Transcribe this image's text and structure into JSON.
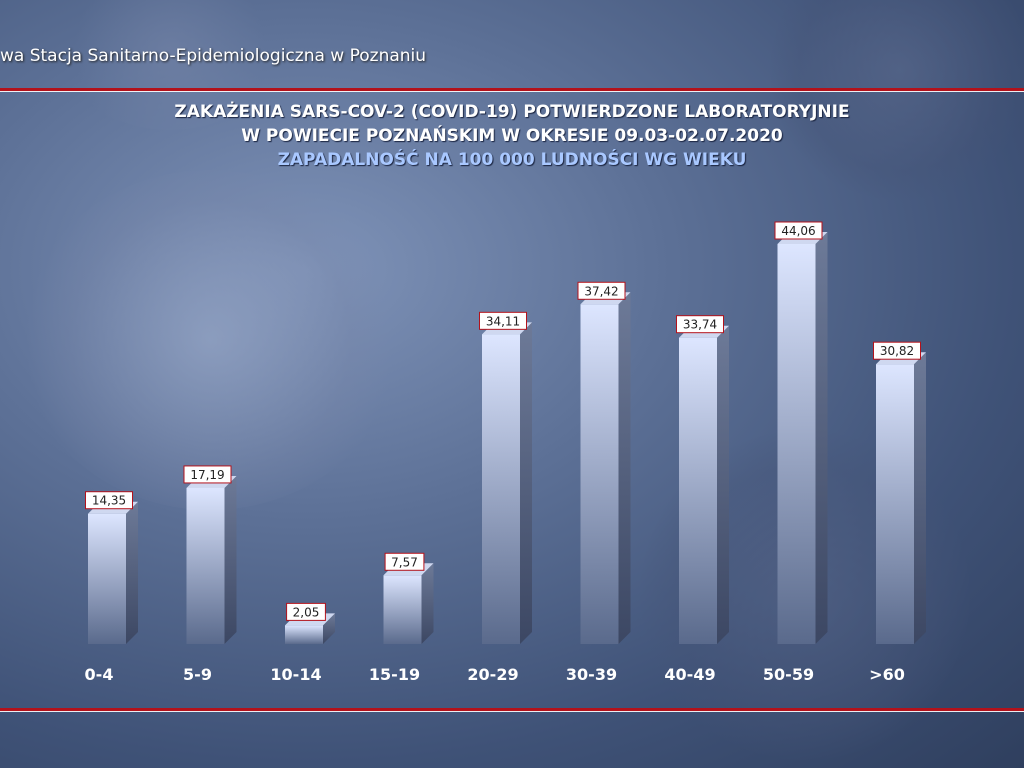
{
  "header": {
    "institution": "wa Stacja Sanitarno-Epidemiologiczna w Poznaniu"
  },
  "chart_data": {
    "type": "bar",
    "title": [
      "ZAKAŻENIA SARS-COV-2 (COVID-19) POTWIERDZONE LABORATORYJNIE",
      "W POWIECIE POZNAŃSKIM W OKRESIE 09.03-02.07.2020"
    ],
    "subtitle": "ZAPADALNOŚĆ NA 100 000 LUDNOŚCI WG WIEKU",
    "categories": [
      "0-4",
      "5-9",
      "10-14",
      "15-19",
      "20-29",
      "30-39",
      "40-49",
      "50-59",
      ">60"
    ],
    "values": [
      14.35,
      17.19,
      2.05,
      7.57,
      34.11,
      37.42,
      33.74,
      44.06,
      30.82
    ],
    "labels": [
      "14,35",
      "17,19",
      "2,05",
      "7,57",
      "34,11",
      "37,42",
      "33,74",
      "44,06",
      "30,82"
    ],
    "xlabel": "",
    "ylabel": "",
    "ylim": [
      0,
      44.06
    ],
    "grid": false,
    "colors": {
      "bar_front_light": "#dde6ff",
      "bar_front_dark": "#5a6a8c",
      "bar_side": "#4a5775",
      "bar_top": "#cfd8f0",
      "label_border": "#b3121b",
      "rule": "#b3121b",
      "subtitle": "#a9c8ff"
    }
  }
}
